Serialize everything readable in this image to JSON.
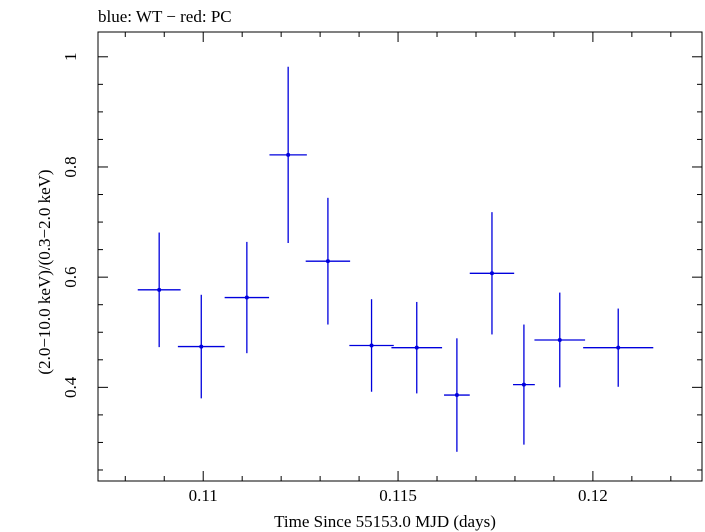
{
  "chart_data": {
    "type": "scatter",
    "title": "blue: WT − red: PC",
    "xlabel": "Time Since 55153.0 MJD (days)",
    "ylabel": "(2.0−10.0 keV)/(0.3−2.0 keV)",
    "xlim": [
      0.1073,
      0.1228
    ],
    "ylim": [
      0.23,
      1.045
    ],
    "x_ticks": [
      {
        "value": 0.11,
        "label": "0.11"
      },
      {
        "value": 0.115,
        "label": "0.115"
      },
      {
        "value": 0.12,
        "label": "0.12"
      }
    ],
    "y_ticks": [
      {
        "value": 0.4,
        "label": "0.4"
      },
      {
        "value": 0.6,
        "label": "0.6"
      },
      {
        "value": 0.8,
        "label": "0.8"
      },
      {
        "value": 1.0,
        "label": "1"
      }
    ],
    "grid": false,
    "series": [
      {
        "color": "#0000dd",
        "points": [
          {
            "x": 0.10887,
            "xerr": 0.00055,
            "y": 0.577,
            "yerr_low": 0.104,
            "yerr_high": 0.104
          },
          {
            "x": 0.10995,
            "xerr": 0.0006,
            "y": 0.474,
            "yerr_low": 0.094,
            "yerr_high": 0.094
          },
          {
            "x": 0.11112,
            "xerr": 0.00057,
            "y": 0.563,
            "yerr_low": 0.101,
            "yerr_high": 0.101
          },
          {
            "x": 0.11218,
            "xerr": 0.00048,
            "y": 0.822,
            "yerr_low": 0.16,
            "yerr_high": 0.16
          },
          {
            "x": 0.1132,
            "xerr": 0.00057,
            "y": 0.629,
            "yerr_low": 0.115,
            "yerr_high": 0.115
          },
          {
            "x": 0.11432,
            "xerr": 0.00057,
            "y": 0.476,
            "yerr_low": 0.084,
            "yerr_high": 0.084
          },
          {
            "x": 0.11548,
            "xerr": 0.00065,
            "y": 0.472,
            "yerr_low": 0.083,
            "yerr_high": 0.083
          },
          {
            "x": 0.11651,
            "xerr": 0.00033,
            "y": 0.386,
            "yerr_low": 0.103,
            "yerr_high": 0.103
          },
          {
            "x": 0.11741,
            "xerr": 0.00057,
            "y": 0.607,
            "yerr_low": 0.111,
            "yerr_high": 0.111
          },
          {
            "x": 0.11823,
            "xerr": 0.00028,
            "y": 0.405,
            "yerr_low": 0.109,
            "yerr_high": 0.109
          },
          {
            "x": 0.11915,
            "xerr": 0.00065,
            "y": 0.486,
            "yerr_low": 0.086,
            "yerr_high": 0.086
          },
          {
            "x": 0.12065,
            "xerr": 0.0009,
            "y": 0.472,
            "yerr_low": 0.071,
            "yerr_high": 0.071
          }
        ]
      }
    ]
  }
}
